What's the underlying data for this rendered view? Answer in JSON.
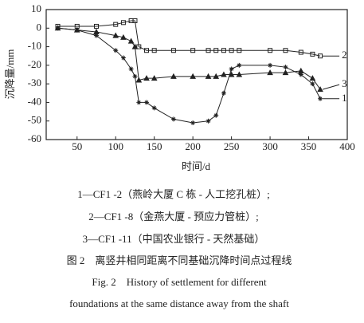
{
  "chart_data": {
    "type": "line",
    "xlabel": "时间/d",
    "ylabel": "沉降量/mm",
    "x": [
      25,
      50,
      75,
      100,
      110,
      120,
      125,
      130,
      140,
      150,
      175,
      200,
      220,
      230,
      240,
      250,
      260,
      300,
      320,
      340,
      355,
      365
    ],
    "series": [
      {
        "name": "1",
        "color": "#222222",
        "marker": "star",
        "values": [
          0,
          -1,
          -4,
          -12,
          -16,
          -22,
          -26,
          -40,
          -40,
          -43,
          -49,
          -51,
          -50,
          -47,
          -35,
          -22,
          -20,
          -20,
          -21,
          -25,
          -30,
          -38
        ]
      },
      {
        "name": "2",
        "color": "#222222",
        "marker": "square",
        "values": [
          1,
          1,
          1,
          2,
          3,
          4,
          4,
          -10,
          -12,
          -12,
          -12,
          -12,
          -12,
          -12,
          -12,
          -12,
          -12,
          -12,
          -12,
          -13,
          -14,
          -15
        ]
      },
      {
        "name": "3",
        "color": "#222222",
        "marker": "triangle",
        "values": [
          0,
          -1,
          -2,
          -4,
          -5,
          -7,
          -10,
          -28,
          -27,
          -27,
          -26,
          -26,
          -26,
          -26,
          -25,
          -25,
          -25,
          -24,
          -24,
          -23,
          -27,
          -33
        ]
      }
    ],
    "xlim": [
      10,
      400
    ],
    "xticks": [
      50,
      100,
      150,
      200,
      250,
      300,
      350,
      400
    ],
    "ylim": [
      -60,
      10
    ],
    "yticks": [
      -60,
      -50,
      -40,
      -30,
      -20,
      -10,
      0,
      10
    ]
  },
  "caption": {
    "notes": [
      "1—CF1 -2（燕岭大厦 C 栋 - 人工挖孔桩）;",
      "2—CF1 -8（金燕大厦 - 预应力管桩）;",
      "3—CF1 -11（中国农业银行 - 天然基础）"
    ],
    "title_cn": "图 2　离竖井相同距离不同基础沉降时间点过程线",
    "title_en": [
      "Fig. 2　History of settlement for different",
      "foundations at the same distance away from the shaft"
    ]
  }
}
